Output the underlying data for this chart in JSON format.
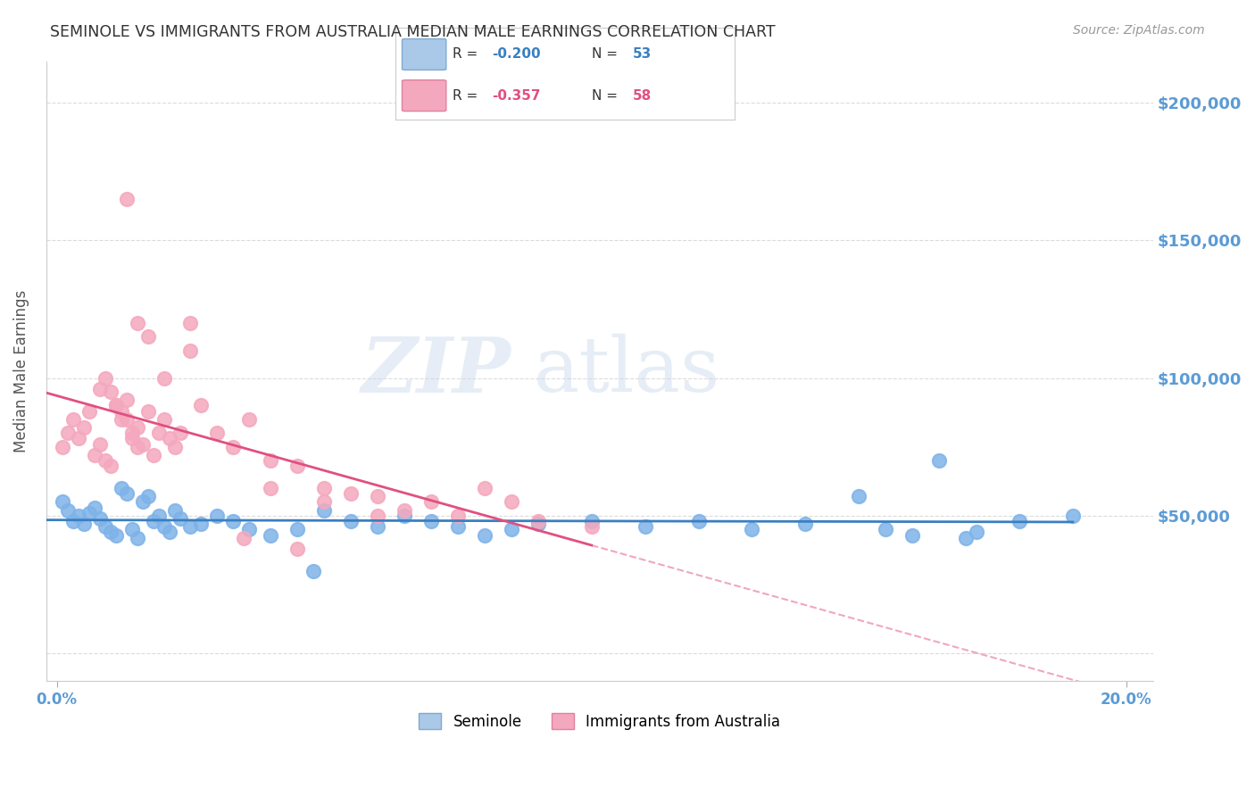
{
  "title": "SEMINOLE VS IMMIGRANTS FROM AUSTRALIA MEDIAN MALE EARNINGS CORRELATION CHART",
  "source": "Source: ZipAtlas.com",
  "ylabel": "Median Male Earnings",
  "ylim": [
    -10000,
    215000
  ],
  "xlim": [
    -0.002,
    0.205
  ],
  "series": [
    {
      "name": "Seminole",
      "R": -0.2,
      "N": 53,
      "color": "#7fb3e8",
      "line_color": "#3a7fc1",
      "x": [
        0.001,
        0.002,
        0.003,
        0.004,
        0.005,
        0.006,
        0.007,
        0.008,
        0.009,
        0.01,
        0.011,
        0.012,
        0.013,
        0.014,
        0.015,
        0.016,
        0.017,
        0.018,
        0.019,
        0.02,
        0.021,
        0.022,
        0.023,
        0.025,
        0.027,
        0.03,
        0.033,
        0.036,
        0.04,
        0.045,
        0.05,
        0.055,
        0.06,
        0.065,
        0.07,
        0.075,
        0.08,
        0.085,
        0.09,
        0.1,
        0.11,
        0.12,
        0.13,
        0.14,
        0.15,
        0.16,
        0.17,
        0.18,
        0.19,
        0.165,
        0.155,
        0.172,
        0.048
      ],
      "y": [
        55000,
        52000,
        48000,
        50000,
        47000,
        51000,
        53000,
        49000,
        46000,
        44000,
        43000,
        60000,
        58000,
        45000,
        42000,
        55000,
        57000,
        48000,
        50000,
        46000,
        44000,
        52000,
        49000,
        46000,
        47000,
        50000,
        48000,
        45000,
        43000,
        45000,
        52000,
        48000,
        46000,
        50000,
        48000,
        46000,
        43000,
        45000,
        47000,
        48000,
        46000,
        48000,
        45000,
        47000,
        57000,
        43000,
        42000,
        48000,
        50000,
        70000,
        45000,
        44000,
        30000
      ]
    },
    {
      "name": "Immigrants from Australia",
      "R": -0.357,
      "N": 58,
      "color": "#f4a8be",
      "line_color": "#e05080",
      "x": [
        0.001,
        0.002,
        0.003,
        0.004,
        0.005,
        0.006,
        0.007,
        0.008,
        0.009,
        0.01,
        0.011,
        0.012,
        0.013,
        0.014,
        0.015,
        0.016,
        0.017,
        0.018,
        0.019,
        0.02,
        0.021,
        0.022,
        0.023,
        0.025,
        0.027,
        0.03,
        0.033,
        0.036,
        0.04,
        0.045,
        0.05,
        0.055,
        0.06,
        0.065,
        0.07,
        0.075,
        0.08,
        0.085,
        0.09,
        0.1,
        0.013,
        0.015,
        0.017,
        0.02,
        0.025,
        0.008,
        0.009,
        0.01,
        0.011,
        0.012,
        0.013,
        0.014,
        0.015,
        0.04,
        0.05,
        0.06,
        0.035,
        0.045
      ],
      "y": [
        75000,
        80000,
        85000,
        78000,
        82000,
        88000,
        72000,
        76000,
        70000,
        68000,
        90000,
        85000,
        92000,
        78000,
        82000,
        76000,
        88000,
        72000,
        80000,
        85000,
        78000,
        75000,
        80000,
        110000,
        90000,
        80000,
        75000,
        85000,
        70000,
        68000,
        60000,
        58000,
        57000,
        52000,
        55000,
        50000,
        60000,
        55000,
        48000,
        46000,
        165000,
        120000,
        115000,
        100000,
        120000,
        96000,
        100000,
        95000,
        90000,
        88000,
        85000,
        80000,
        75000,
        60000,
        55000,
        50000,
        42000,
        38000
      ]
    }
  ],
  "watermark_zip": "ZIP",
  "watermark_atlas": "atlas",
  "background_color": "#ffffff",
  "grid_color": "#cccccc",
  "title_color": "#333333",
  "axis_label_color": "#5b9bd5",
  "source_color": "#999999"
}
